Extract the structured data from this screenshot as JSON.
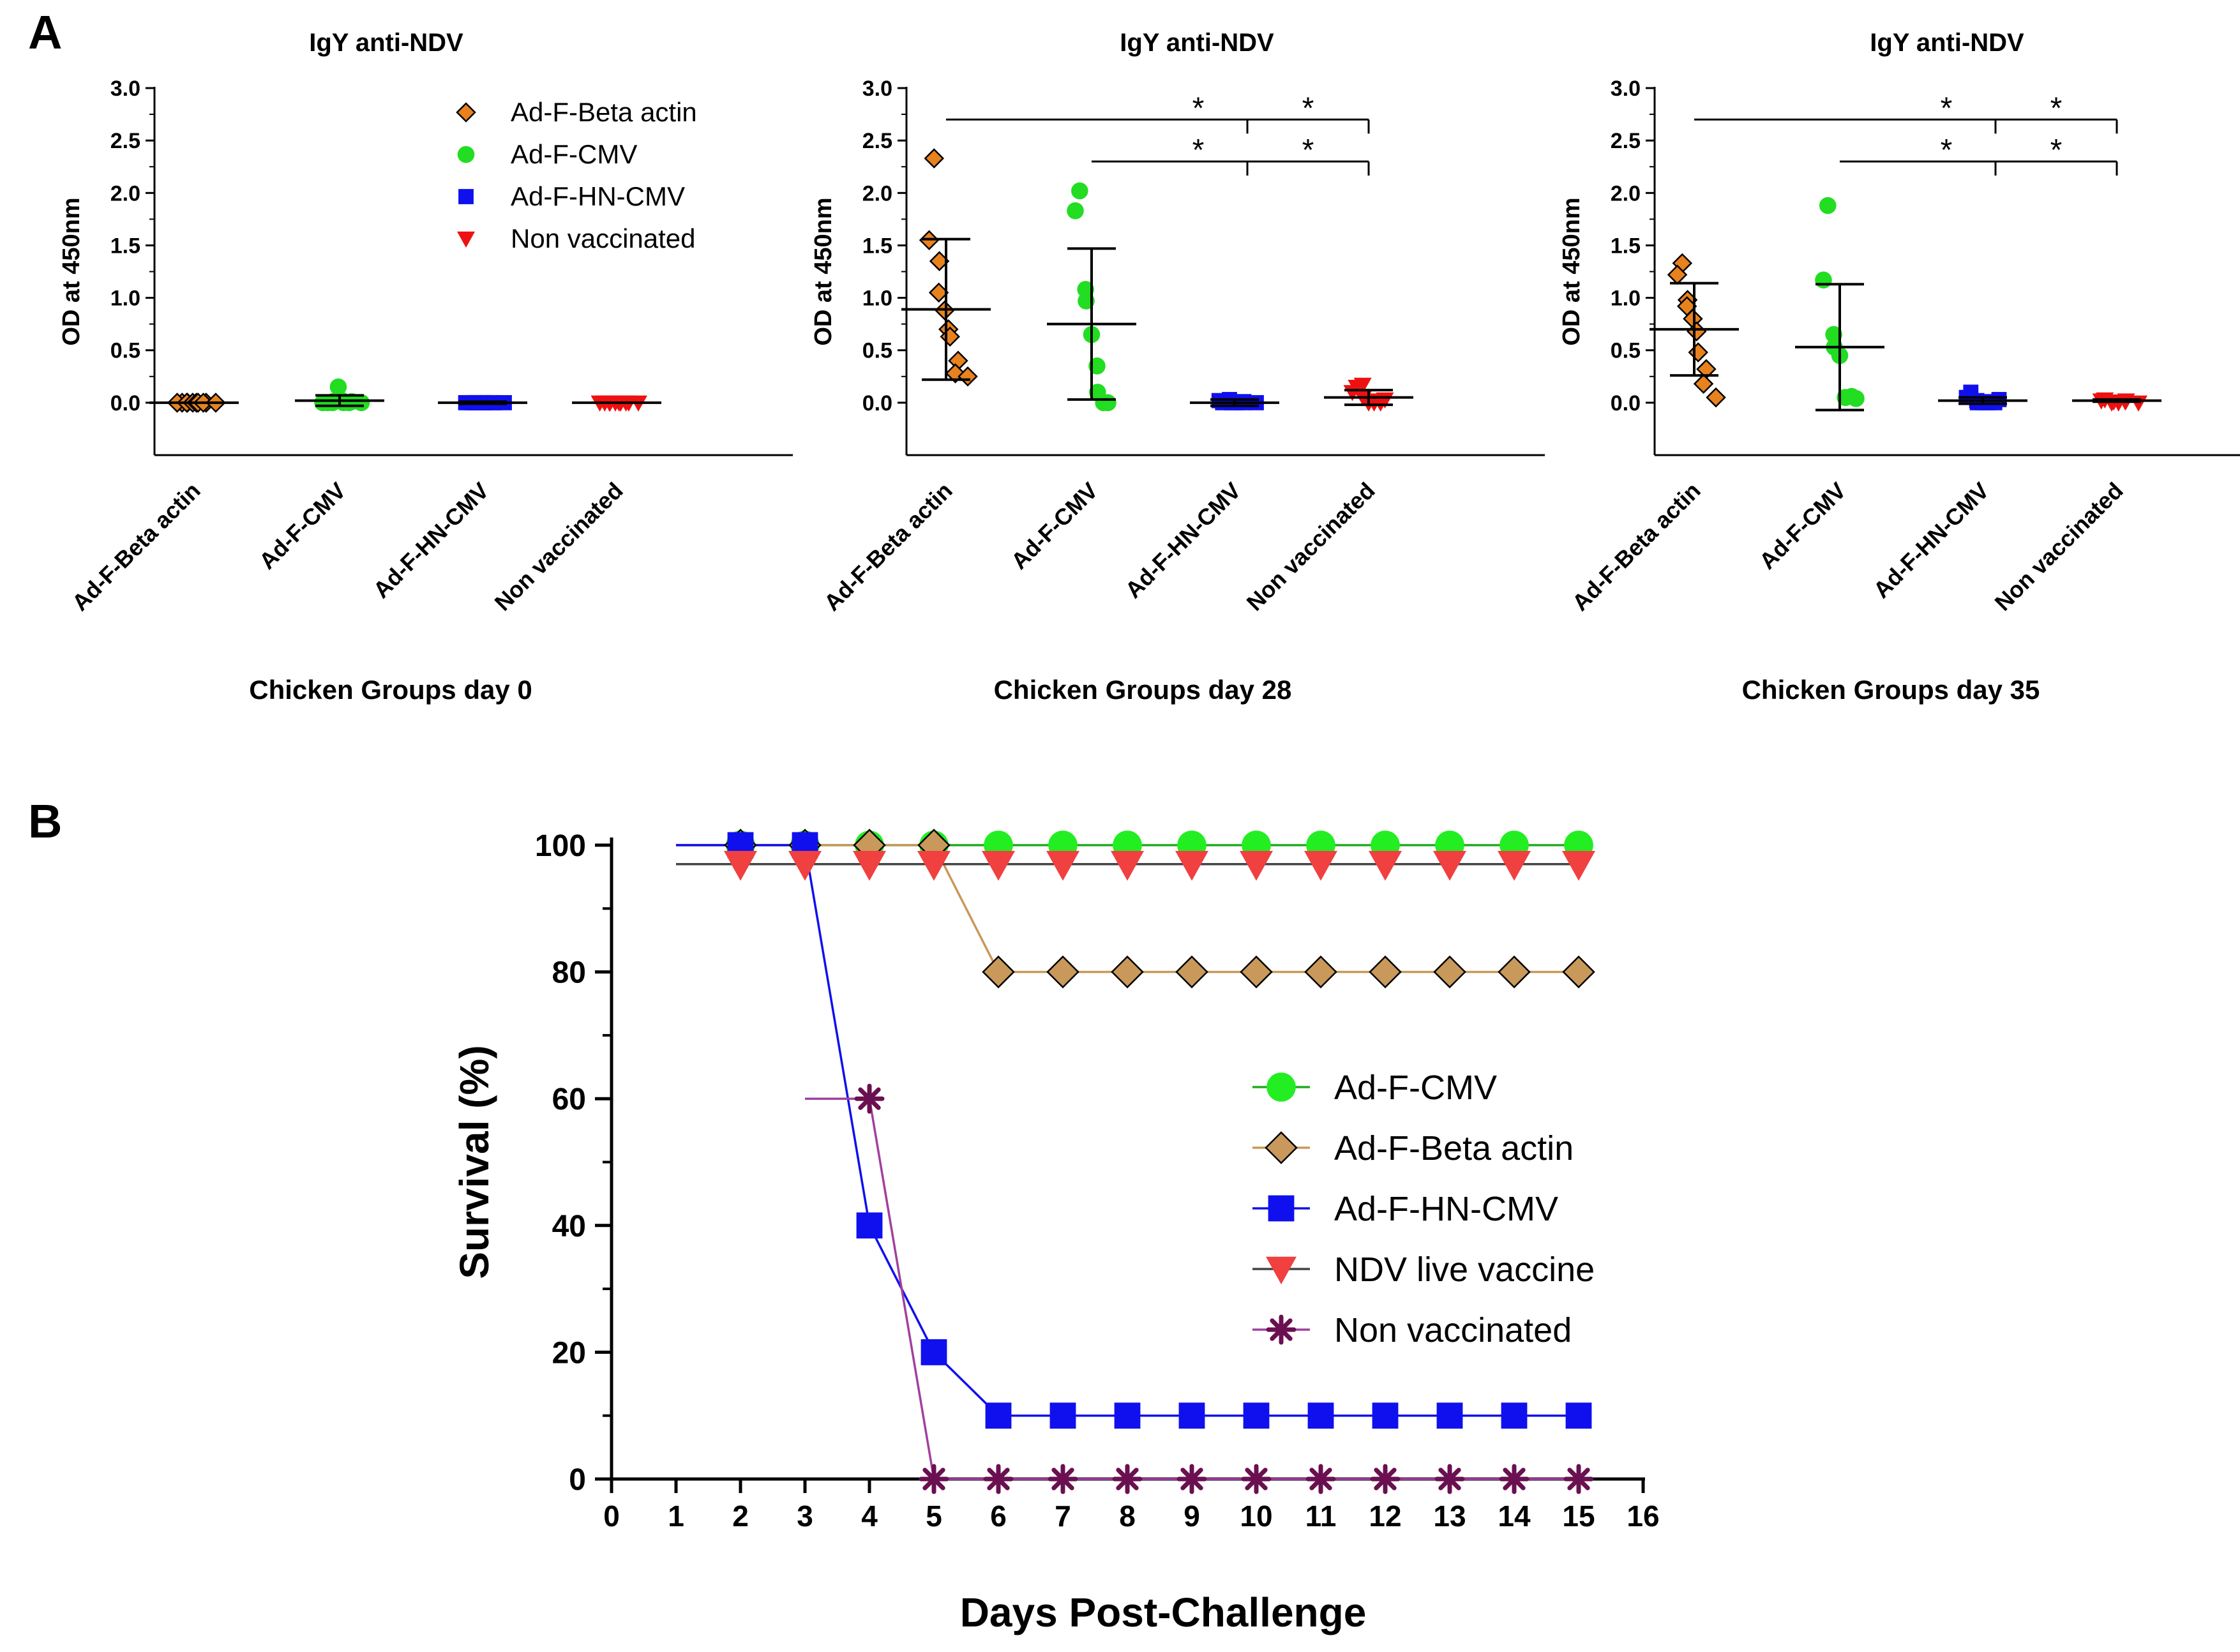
{
  "figure": {
    "panel_a_letter": "A",
    "panel_b_letter": "B"
  },
  "chart_data": [
    {
      "type": "scatter",
      "title": "IgY anti-NDV",
      "xlabel": "Chicken Groups day 0",
      "ylabel": "OD at 450nm",
      "ylim": [
        -0.5,
        3.0
      ],
      "yticks": [
        "0.0",
        "0.5",
        "1.0",
        "1.5",
        "2.0",
        "2.5",
        "3.0"
      ],
      "categories": [
        "Ad-F-Beta actin",
        "Ad-F-CMV",
        "Ad-F-HN-CMV",
        "Non vaccinated"
      ],
      "legend": [
        "Ad-F-Beta actin",
        "Ad-F-CMV",
        "Ad-F-HN-CMV",
        "Non vaccinated"
      ],
      "series": [
        {
          "name": "Ad-F-Beta actin",
          "marker": "diamond",
          "color": "#e8821e",
          "mean": 0.0,
          "sd": 0.0,
          "points": [
            0.0,
            0.0,
            0.0,
            0.0,
            0.0,
            0.0,
            0.0,
            0.0,
            0.0,
            0.0
          ]
        },
        {
          "name": "Ad-F-CMV",
          "marker": "circle",
          "color": "#22dd22",
          "mean": 0.02,
          "sd": 0.05,
          "points": [
            0.0,
            0.0,
            0.01,
            0.0,
            0.15,
            0.02,
            0.0,
            0.01,
            0.0,
            0.0
          ]
        },
        {
          "name": "Ad-F-HN-CMV",
          "marker": "square",
          "color": "#1010ee",
          "mean": 0.0,
          "sd": 0.01,
          "points": [
            0.0,
            0.0,
            0.0,
            0.0,
            0.0,
            0.0,
            0.0,
            0.0,
            0.0,
            0.0
          ]
        },
        {
          "name": "Non vaccinated",
          "marker": "triangle-down",
          "color": "#ee1111",
          "mean": 0.0,
          "sd": 0.0,
          "points": [
            0.0,
            0.0,
            0.0,
            0.0,
            0.0,
            0.0,
            0.0,
            0.0,
            0.0,
            0.0
          ]
        }
      ],
      "significance": []
    },
    {
      "type": "scatter",
      "title": "IgY anti-NDV",
      "xlabel": "Chicken Groups day 28",
      "ylabel": "OD at 450nm",
      "ylim": [
        -0.5,
        3.0
      ],
      "yticks": [
        "0.0",
        "0.5",
        "1.0",
        "1.5",
        "2.0",
        "2.5",
        "3.0"
      ],
      "categories": [
        "Ad-F-Beta actin",
        "Ad-F-CMV",
        "Ad-F-HN-CMV",
        "Non vaccinated"
      ],
      "series": [
        {
          "name": "Ad-F-Beta actin",
          "marker": "diamond",
          "color": "#e8821e",
          "mean": 0.89,
          "sd": 0.67,
          "points": [
            2.33,
            1.55,
            1.35,
            1.05,
            0.88,
            0.7,
            0.63,
            0.4,
            0.28,
            0.25
          ]
        },
        {
          "name": "Ad-F-CMV",
          "marker": "circle",
          "color": "#22dd22",
          "mean": 0.75,
          "sd": 0.72,
          "points": [
            2.02,
            1.83,
            1.08,
            0.97,
            0.65,
            0.35,
            0.1,
            0.0,
            0.0
          ]
        },
        {
          "name": "Ad-F-HN-CMV",
          "marker": "square",
          "color": "#1010ee",
          "mean": 0.0,
          "sd": 0.03,
          "points": [
            0.0,
            0.02,
            0.03,
            0.0,
            0.0,
            0.01,
            0.0,
            0.0
          ]
        },
        {
          "name": "Non vaccinated",
          "marker": "triangle-down",
          "color": "#ee1111",
          "mean": 0.05,
          "sd": 0.07,
          "points": [
            0.15,
            0.1,
            0.17,
            0.05,
            0.0,
            0.0,
            0.02,
            0.03,
            0.0
          ]
        }
      ],
      "significance": [
        {
          "from": "Ad-F-Beta actin",
          "to": "Non vaccinated",
          "y": 2.7,
          "stars": [
            "*",
            "*"
          ]
        },
        {
          "from": "Ad-F-CMV",
          "to": "Non vaccinated",
          "y": 2.3,
          "stars": [
            "*",
            "*"
          ]
        }
      ]
    },
    {
      "type": "scatter",
      "title": "IgY anti-NDV",
      "xlabel": "Chicken Groups day 35",
      "ylabel": "OD at 450nm",
      "ylim": [
        -0.5,
        3.0
      ],
      "yticks": [
        "0.0",
        "0.5",
        "1.0",
        "1.5",
        "2.0",
        "2.5",
        "3.0"
      ],
      "categories": [
        "Ad-F-Beta actin",
        "Ad-F-CMV",
        "Ad-F-HN-CMV",
        "Non vaccinated"
      ],
      "series": [
        {
          "name": "Ad-F-Beta actin",
          "marker": "diamond",
          "color": "#e8821e",
          "mean": 0.7,
          "sd": 0.44,
          "points": [
            1.33,
            1.22,
            0.98,
            0.92,
            0.8,
            0.68,
            0.48,
            0.32,
            0.18,
            0.05
          ]
        },
        {
          "name": "Ad-F-CMV",
          "marker": "circle",
          "color": "#22dd22",
          "mean": 0.53,
          "sd": 0.6,
          "points": [
            1.88,
            1.17,
            0.65,
            0.53,
            0.45,
            0.05,
            0.05,
            0.04,
            0.06
          ]
        },
        {
          "name": "Ad-F-HN-CMV",
          "marker": "square",
          "color": "#1010ee",
          "mean": 0.02,
          "sd": 0.03,
          "points": [
            0.1,
            0.05,
            0.02,
            0.0,
            0.0,
            0.01,
            0.0,
            0.03,
            0.0
          ]
        },
        {
          "name": "Non vaccinated",
          "marker": "triangle-down",
          "color": "#ee1111",
          "mean": 0.02,
          "sd": 0.01,
          "points": [
            0.03,
            0.02,
            0.0,
            0.01,
            0.0,
            0.02,
            0.01,
            0.0
          ]
        }
      ],
      "significance": [
        {
          "from": "Ad-F-Beta actin",
          "to": "Non vaccinated",
          "y": 2.7,
          "stars": [
            "*",
            "*"
          ]
        },
        {
          "from": "Ad-F-CMV",
          "to": "Non vaccinated",
          "y": 2.3,
          "stars": [
            "*",
            "*"
          ]
        }
      ]
    },
    {
      "type": "line",
      "title": "",
      "xlabel": "Days Post-Challenge",
      "ylabel": "Survival (%)",
      "xlim": [
        0,
        16
      ],
      "ylim": [
        0,
        100
      ],
      "xticks": [
        0,
        1,
        2,
        3,
        4,
        5,
        6,
        7,
        8,
        9,
        10,
        11,
        12,
        13,
        14,
        15,
        16
      ],
      "yticks": [
        0,
        20,
        40,
        60,
        80,
        100
      ],
      "legend_position": "center-right",
      "legend": [
        "Ad-F-CMV",
        "Ad-F-Beta actin",
        "Ad-F-HN-CMV",
        "NDV live vaccine",
        "Non vaccinated"
      ],
      "series": [
        {
          "name": "Ad-F-CMV",
          "marker": "circle",
          "color": "#22ee22",
          "line_color": "#22aa22",
          "line_from": 1,
          "x": [
            2,
            3,
            4,
            5,
            6,
            7,
            8,
            9,
            10,
            11,
            12,
            13,
            14,
            15
          ],
          "y": [
            100,
            100,
            100,
            100,
            100,
            100,
            100,
            100,
            100,
            100,
            100,
            100,
            100,
            100
          ]
        },
        {
          "name": "Ad-F-Beta actin",
          "marker": "diamond",
          "color": "#c8995a",
          "line_color": "#c8995a",
          "line_from": 1,
          "x": [
            2,
            3,
            4,
            5,
            6,
            7,
            8,
            9,
            10,
            11,
            12,
            13,
            14,
            15
          ],
          "y": [
            100,
            100,
            100,
            100,
            80,
            80,
            80,
            80,
            80,
            80,
            80,
            80,
            80,
            80
          ]
        },
        {
          "name": "Ad-F-HN-CMV",
          "marker": "square",
          "color": "#1010ee",
          "line_color": "#1010ee",
          "line_from": 1,
          "x": [
            2,
            3,
            4,
            5,
            6,
            7,
            8,
            9,
            10,
            11,
            12,
            13,
            14,
            15
          ],
          "y": [
            100,
            100,
            40,
            20,
            10,
            10,
            10,
            10,
            10,
            10,
            10,
            10,
            10,
            10
          ]
        },
        {
          "name": "NDV live vaccine",
          "marker": "triangle-down",
          "color": "#f04040",
          "line_color": "#444444",
          "line_from": 1,
          "x": [
            2,
            3,
            4,
            5,
            6,
            7,
            8,
            9,
            10,
            11,
            12,
            13,
            14,
            15
          ],
          "y": [
            97,
            97,
            97,
            97,
            97,
            97,
            97,
            97,
            97,
            97,
            97,
            97,
            97,
            97
          ]
        },
        {
          "name": "Non vaccinated",
          "marker": "asterisk",
          "color": "#6a1050",
          "line_color": "#a040a0",
          "line_from": 3,
          "x": [
            4,
            5,
            6,
            7,
            8,
            9,
            10,
            11,
            12,
            13,
            14,
            15
          ],
          "y": [
            60,
            0,
            0,
            0,
            0,
            0,
            0,
            0,
            0,
            0,
            0,
            0
          ]
        }
      ]
    }
  ]
}
